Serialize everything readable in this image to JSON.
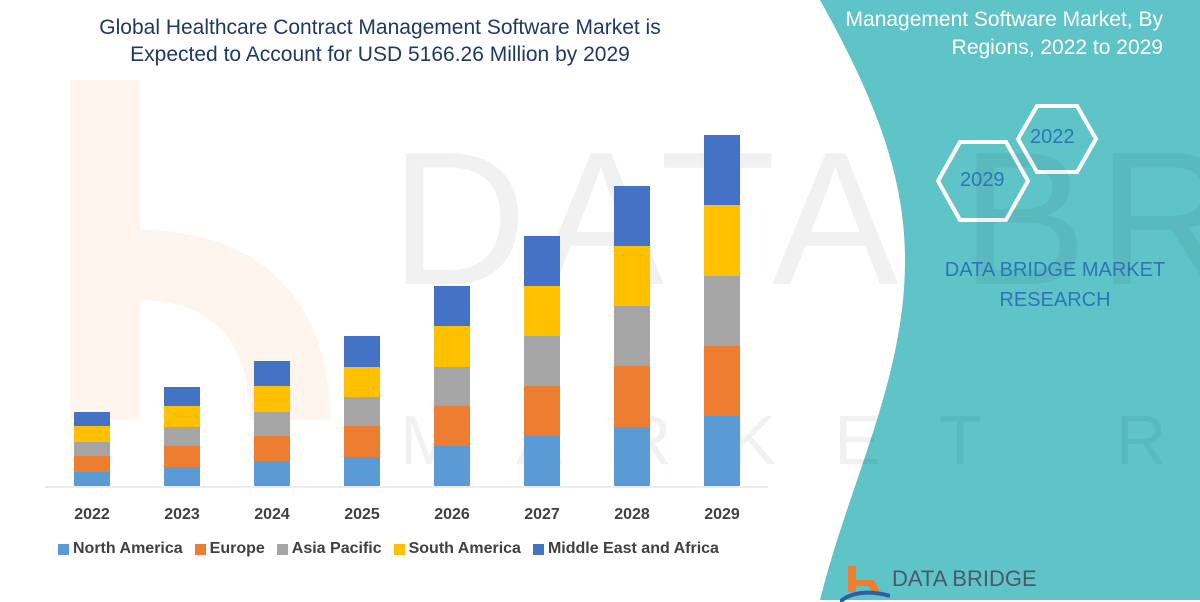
{
  "title": "Global Healthcare Contract Management Software Market is Expected to Account for USD 5166.26 Million by 2029",
  "side_panel": {
    "subtitle": "Management Software Market, By Regions, 2022 to 2029",
    "hex_start": "2022",
    "hex_end": "2029",
    "brand": "DATA BRIDGE MARKET RESEARCH",
    "logo_text": "DATA BRIDGE",
    "color": "#5fc4c8"
  },
  "chart_data": {
    "type": "bar",
    "stacked": true,
    "categories": [
      "2022",
      "2023",
      "2024",
      "2025",
      "2026",
      "2027",
      "2028",
      "2029"
    ],
    "series": [
      {
        "name": "North America",
        "color": "#5b9bd5",
        "values": [
          14,
          19,
          25,
          29,
          40,
          50,
          59,
          70
        ]
      },
      {
        "name": "Europe",
        "color": "#ed7d31",
        "values": [
          16,
          21,
          25,
          31,
          40,
          50,
          61,
          70
        ]
      },
      {
        "name": "Asia Pacific",
        "color": "#a5a5a5",
        "values": [
          14,
          19,
          24,
          29,
          39,
          50,
          60,
          70
        ]
      },
      {
        "name": "South America",
        "color": "#ffc000",
        "values": [
          16,
          21,
          26,
          30,
          41,
          50,
          60,
          71
        ]
      },
      {
        "name": "Middle East and Africa",
        "color": "#4472c4",
        "values": [
          14,
          19,
          25,
          31,
          40,
          50,
          60,
          70
        ]
      }
    ],
    "ylim": [
      0,
      360
    ],
    "grid": false,
    "legend_position": "bottom",
    "xlabel": "",
    "ylabel": ""
  }
}
